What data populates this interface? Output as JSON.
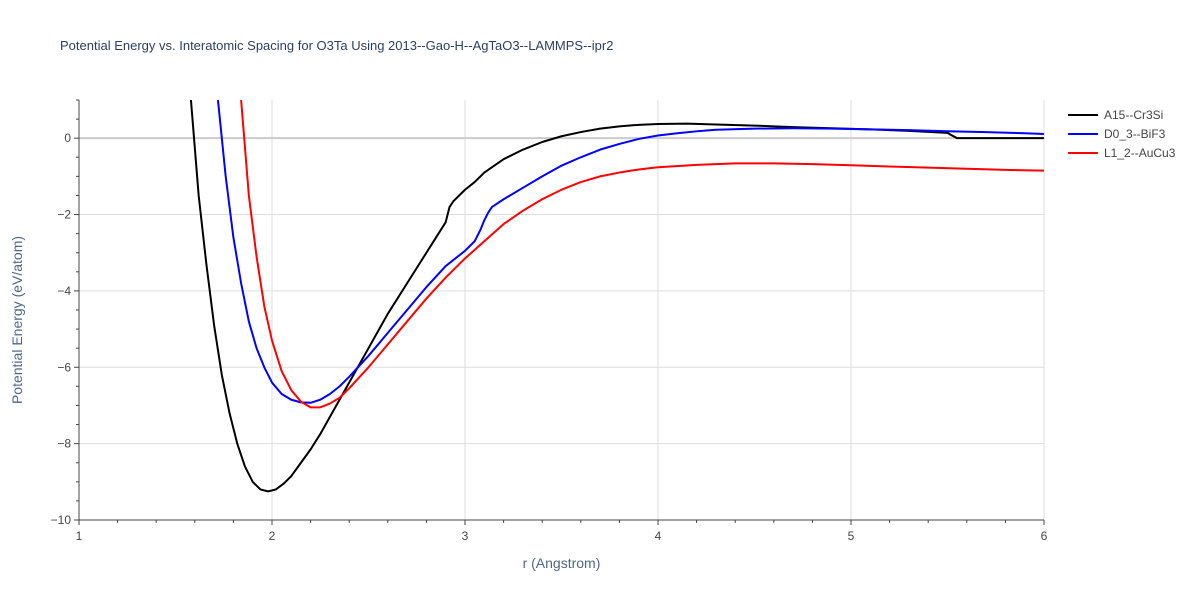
{
  "chart_data": {
    "type": "line",
    "title": "Potential Energy vs. Interatomic Spacing for O3Ta Using 2013--Gao-H--AgTaO3--LAMMPS--ipr2",
    "xlabel": "r (Angstrom)",
    "ylabel": "Potential Energy (eV/atom)",
    "xlim": [
      1,
      6
    ],
    "ylim": [
      -10,
      1
    ],
    "xticks": [
      1,
      2,
      3,
      4,
      5,
      6
    ],
    "xtick_labels": [
      "1",
      "2",
      "3",
      "4",
      "5",
      "6"
    ],
    "yticks": [
      -10,
      -8,
      -6,
      -4,
      -2,
      0
    ],
    "ytick_labels": [
      "−10",
      "−8",
      "−6",
      "−4",
      "−2",
      "0"
    ],
    "grid": true,
    "legend_position": "top-right",
    "series": [
      {
        "name": "A15--Cr3Si",
        "color": "#000000",
        "x": [
          1.58,
          1.62,
          1.66,
          1.7,
          1.74,
          1.78,
          1.82,
          1.86,
          1.9,
          1.94,
          1.98,
          2.02,
          2.06,
          2.1,
          2.15,
          2.2,
          2.25,
          2.3,
          2.35,
          2.4,
          2.45,
          2.5,
          2.55,
          2.6,
          2.65,
          2.7,
          2.75,
          2.8,
          2.85,
          2.9,
          2.92,
          2.94,
          2.96,
          3.0,
          3.05,
          3.1,
          3.2,
          3.3,
          3.4,
          3.5,
          3.6,
          3.7,
          3.8,
          3.9,
          4.0,
          4.15,
          4.3,
          4.5,
          4.7,
          4.9,
          5.1,
          5.3,
          5.5,
          5.52,
          5.55,
          5.6,
          5.8,
          6.0
        ],
        "y": [
          1.0,
          -1.5,
          -3.3,
          -4.9,
          -6.2,
          -7.2,
          -8.0,
          -8.6,
          -9.0,
          -9.2,
          -9.25,
          -9.2,
          -9.05,
          -8.85,
          -8.5,
          -8.15,
          -7.75,
          -7.3,
          -6.85,
          -6.4,
          -5.95,
          -5.5,
          -5.05,
          -4.6,
          -4.2,
          -3.8,
          -3.4,
          -3.0,
          -2.6,
          -2.2,
          -1.8,
          -1.65,
          -1.55,
          -1.35,
          -1.15,
          -0.9,
          -0.55,
          -0.3,
          -0.1,
          0.05,
          0.16,
          0.25,
          0.31,
          0.35,
          0.37,
          0.38,
          0.36,
          0.33,
          0.29,
          0.26,
          0.23,
          0.19,
          0.14,
          0.08,
          0.0,
          0.0,
          0.0,
          0.0
        ]
      },
      {
        "name": "D0_3--BiF3",
        "color": "#0000ff",
        "x": [
          1.72,
          1.76,
          1.8,
          1.84,
          1.88,
          1.92,
          1.96,
          2.0,
          2.05,
          2.1,
          2.15,
          2.2,
          2.25,
          2.3,
          2.35,
          2.4,
          2.5,
          2.6,
          2.7,
          2.8,
          2.9,
          3.0,
          3.05,
          3.08,
          3.1,
          3.12,
          3.14,
          3.2,
          3.3,
          3.4,
          3.5,
          3.6,
          3.7,
          3.8,
          3.9,
          4.0,
          4.1,
          4.2,
          4.3,
          4.5,
          4.7,
          4.9,
          5.1,
          5.3,
          5.5,
          5.7,
          5.9,
          6.0
        ],
        "y": [
          1.0,
          -1.0,
          -2.6,
          -3.8,
          -4.8,
          -5.5,
          -6.0,
          -6.4,
          -6.7,
          -6.85,
          -6.92,
          -6.93,
          -6.85,
          -6.7,
          -6.5,
          -6.25,
          -5.7,
          -5.1,
          -4.5,
          -3.9,
          -3.35,
          -2.95,
          -2.7,
          -2.4,
          -2.15,
          -1.95,
          -1.8,
          -1.6,
          -1.3,
          -1.0,
          -0.72,
          -0.5,
          -0.3,
          -0.15,
          -0.02,
          0.07,
          0.13,
          0.18,
          0.22,
          0.25,
          0.26,
          0.25,
          0.23,
          0.21,
          0.18,
          0.16,
          0.13,
          0.11
        ]
      },
      {
        "name": "L1_2--AuCu3",
        "color": "#ff0000",
        "x": [
          1.84,
          1.88,
          1.92,
          1.96,
          2.0,
          2.05,
          2.1,
          2.15,
          2.2,
          2.25,
          2.3,
          2.35,
          2.4,
          2.5,
          2.6,
          2.7,
          2.8,
          2.9,
          3.0,
          3.1,
          3.2,
          3.3,
          3.4,
          3.5,
          3.6,
          3.7,
          3.8,
          3.9,
          4.0,
          4.2,
          4.4,
          4.6,
          4.8,
          5.0,
          5.2,
          5.4,
          5.6,
          5.8,
          6.0
        ],
        "y": [
          1.0,
          -1.5,
          -3.1,
          -4.4,
          -5.3,
          -6.1,
          -6.6,
          -6.9,
          -7.05,
          -7.05,
          -6.95,
          -6.8,
          -6.55,
          -6.0,
          -5.4,
          -4.8,
          -4.2,
          -3.65,
          -3.15,
          -2.7,
          -2.25,
          -1.9,
          -1.6,
          -1.35,
          -1.15,
          -1.0,
          -0.9,
          -0.82,
          -0.76,
          -0.7,
          -0.66,
          -0.66,
          -0.68,
          -0.71,
          -0.74,
          -0.77,
          -0.8,
          -0.83,
          -0.85
        ]
      }
    ]
  }
}
